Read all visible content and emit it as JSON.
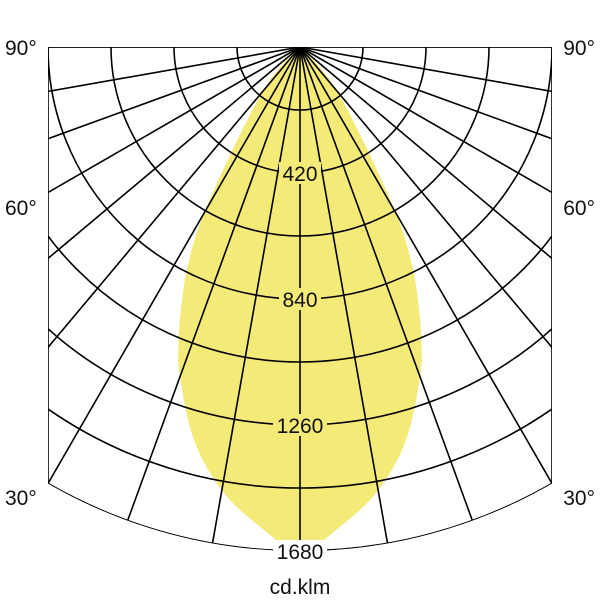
{
  "chart_data": {
    "type": "polar",
    "unit_label": "cd.klm",
    "radial_ticks": [
      420,
      840,
      1260,
      1680
    ],
    "radial_max": 1680,
    "radial_grid_step": 210,
    "angle_grid_step_deg": 10,
    "angle_labels": {
      "left": [
        "90°",
        "60°",
        "30°"
      ],
      "right": [
        "90°",
        "60°",
        "30°"
      ]
    },
    "fill_color": "#f3ea78",
    "grid_color": "#000000",
    "series": [
      {
        "angles_deg": [
          0,
          5,
          10,
          15,
          20,
          22.5,
          25,
          27.5,
          30,
          34,
          40,
          45,
          50
        ],
        "values": [
          1680,
          1600,
          1500,
          1360,
          1170,
          1057,
          930,
          800,
          640,
          374,
          190,
          80,
          0
        ],
        "symmetric": true
      }
    ]
  }
}
